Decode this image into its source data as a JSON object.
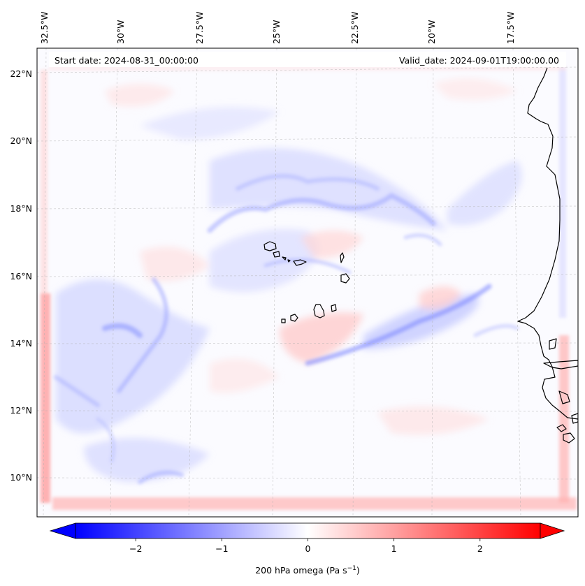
{
  "map": {
    "start_date_text": "Start date: 2024-08-31_00:00:00",
    "valid_date_text": "Valid_date: 2024-09-01T19:00:00.00",
    "lon_labels": [
      "32.5°W",
      "30°W",
      "27.5°W",
      "25°W",
      "22.5°W",
      "20°W",
      "17.5°W"
    ],
    "lat_labels": [
      "22°N",
      "20°N",
      "18°N",
      "16°N",
      "14°N",
      "12°N",
      "10°N"
    ],
    "gridlines": true,
    "coastline_color": "#000000"
  },
  "colorbar": {
    "label_prefix": "200 hPa omega (Pa s",
    "label_exponent": "−1",
    "label_suffix": ")",
    "ticks": [
      {
        "value": -2,
        "text": "−2"
      },
      {
        "value": -1,
        "text": "−1"
      },
      {
        "value": 0,
        "text": "0"
      },
      {
        "value": 1,
        "text": "1"
      },
      {
        "value": 2,
        "text": "2"
      }
    ],
    "range": [
      -2.7,
      2.7
    ],
    "extend": "both",
    "colormap": "bwr",
    "negative_color": "#0000ff",
    "neutral_color": "#ffffff",
    "positive_color": "#ff0000"
  }
}
